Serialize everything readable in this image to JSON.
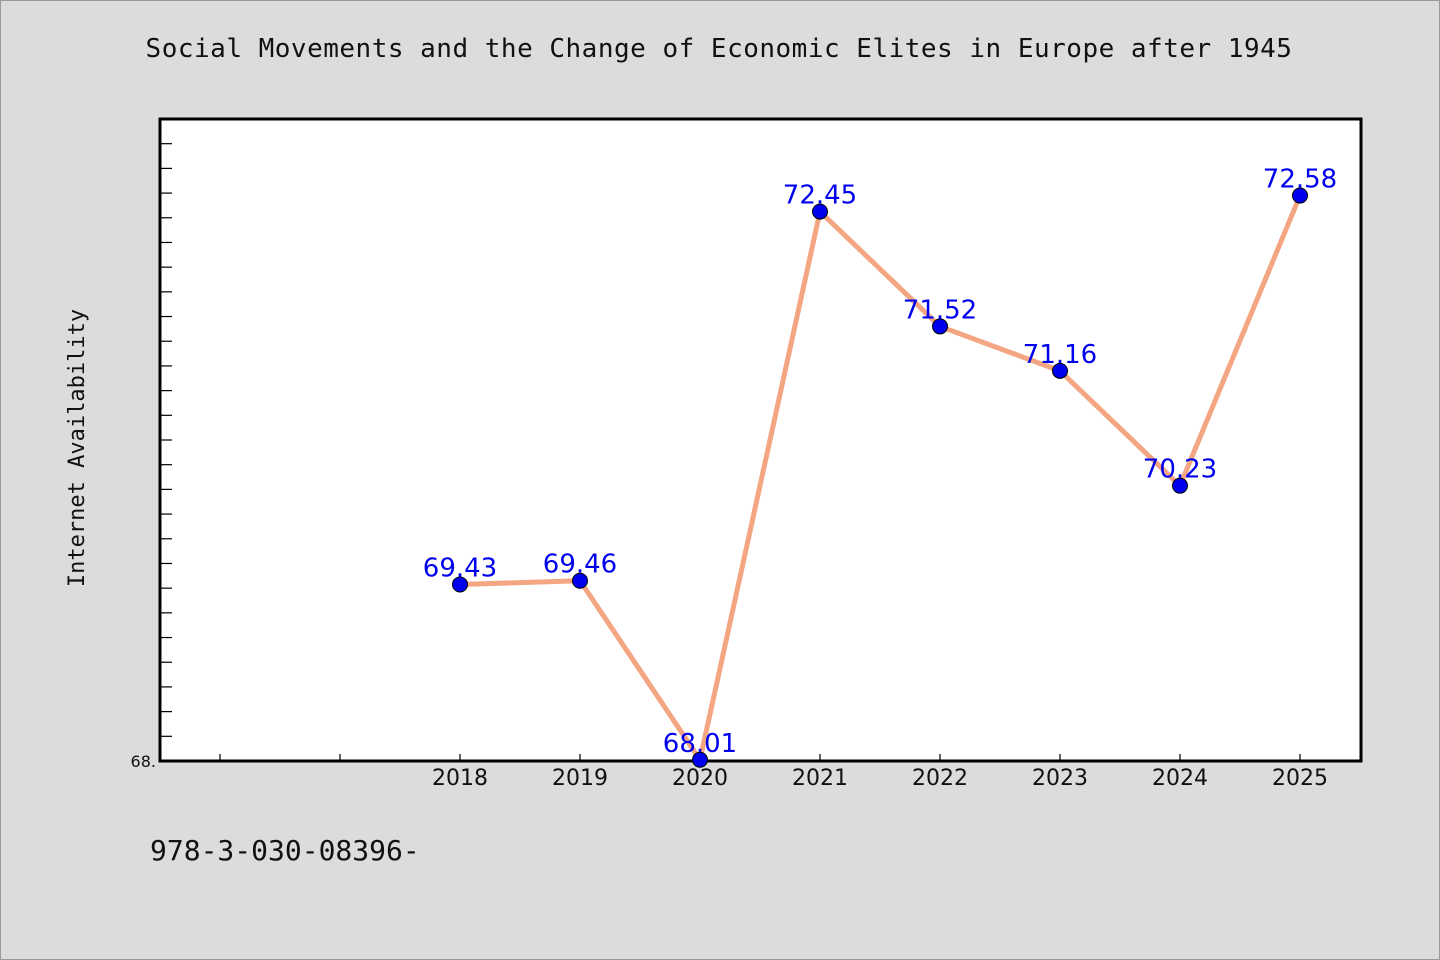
{
  "page": {
    "title": "Social Movements and the Change of Economic Elites in Europe after 1945",
    "footer_code": "978-3-030-08396-"
  },
  "chart_data": {
    "type": "line",
    "title": "Social Movements and the Change of Economic Elites in Europe after 1945",
    "xlabel": "",
    "ylabel": "Internet Availability",
    "x": [
      "2018",
      "2019",
      "2020",
      "2021",
      "2022",
      "2023",
      "2024",
      "2025"
    ],
    "series": [
      {
        "values": [
          69.43,
          69.46,
          68.01,
          72.45,
          71.52,
          71.16,
          70.23,
          72.58
        ],
        "data_labels": [
          "69.43",
          "69.46",
          "68.01",
          "72.45",
          "71.52",
          "71.16",
          "70.23",
          "72.58"
        ]
      }
    ],
    "x_slots": 10,
    "first_category_slot": 2,
    "ylim": [
      68.0,
      73.2
    ],
    "ytick_labels": [
      {
        "value": 68.0,
        "label": "68."
      }
    ],
    "minor_ytick_step": 0.2,
    "grid": false,
    "legend": "none",
    "colors": {
      "line": "#f4a582",
      "marker": "#0000ee",
      "data_label": "#0000ee",
      "plot_bg": "#ffffff",
      "page_bg": "#dcdcdc"
    }
  }
}
